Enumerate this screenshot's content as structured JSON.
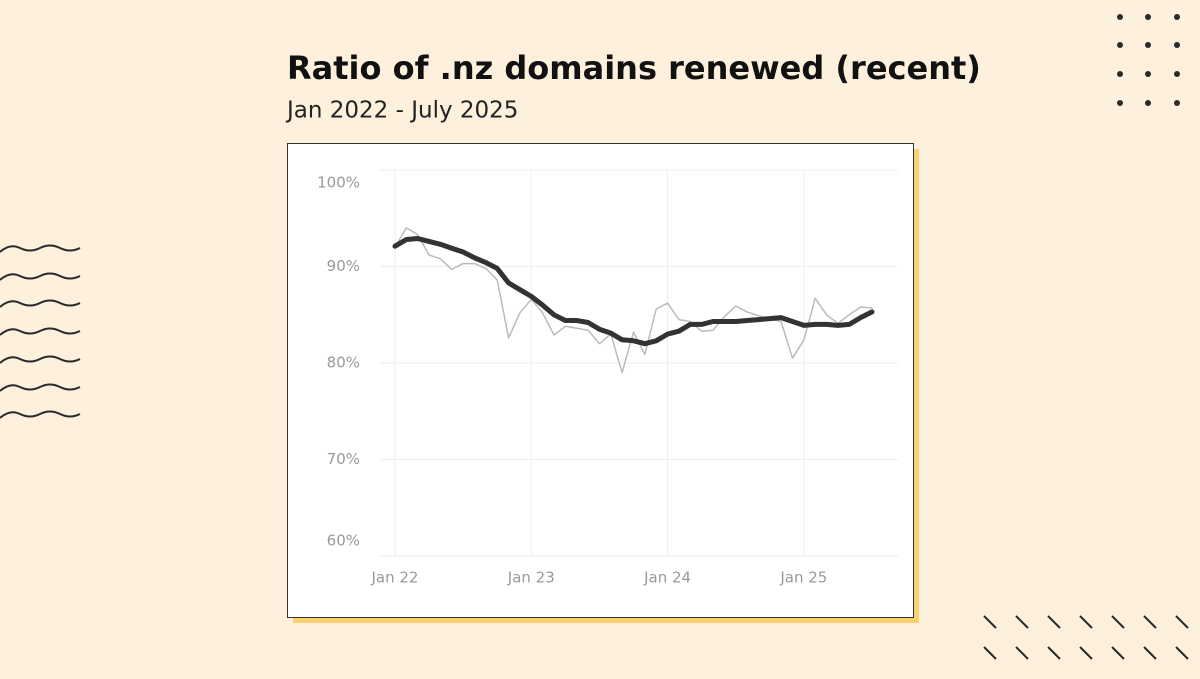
{
  "chart_data": {
    "type": "line",
    "title": "Ratio of .nz domains renewed (recent)",
    "subtitle": "Jan 2022 - July 2025",
    "categories": [
      "Jan 22",
      null,
      null,
      null,
      null,
      null,
      null,
      null,
      null,
      null,
      null,
      null,
      "Jan 23",
      null,
      null,
      null,
      null,
      null,
      null,
      null,
      null,
      null,
      null,
      null,
      "Jan 24",
      null,
      null,
      null,
      null,
      null,
      null,
      null,
      null,
      null,
      null,
      null,
      "Jan 25",
      null,
      null,
      null,
      null,
      null,
      null
    ],
    "series": [
      {
        "color": "#bbbbbb",
        "values": [
          92.0,
          94.0,
          93.3,
          91.2,
          90.8,
          89.7,
          90.3,
          90.3,
          89.8,
          88.6,
          82.6,
          85.2,
          86.6,
          85.2,
          82.9,
          83.8,
          83.6,
          83.4,
          82.0,
          83.0,
          79.0,
          83.2,
          80.9,
          85.6,
          86.2,
          84.5,
          84.3,
          83.3,
          83.4,
          84.8,
          85.9,
          85.3,
          84.9,
          84.6,
          84.3,
          80.5,
          82.4,
          86.7,
          85.0,
          84.1,
          85.0,
          85.8,
          85.7
        ]
      },
      {
        "color": "#333333",
        "values": [
          92.1,
          92.8,
          92.9,
          92.6,
          92.3,
          91.9,
          91.5,
          90.9,
          90.4,
          89.8,
          88.3,
          87.6,
          86.9,
          86.0,
          85.0,
          84.4,
          84.4,
          84.2,
          83.5,
          83.1,
          82.4,
          82.3,
          82.0,
          82.3,
          83.0,
          83.3,
          84.0,
          84.0,
          84.3,
          84.3,
          84.3,
          84.4,
          84.5,
          84.6,
          84.7,
          84.3,
          83.9,
          84.0,
          84.0,
          83.9,
          84.0,
          84.7,
          85.3
        ]
      }
    ],
    "ylim": [
      60,
      100
    ],
    "yticks": [
      {
        "value": 100,
        "label": "100%"
      },
      {
        "value": 90,
        "label": "90%"
      },
      {
        "value": 80,
        "label": "80%"
      },
      {
        "value": 70,
        "label": "70%"
      },
      {
        "value": 60,
        "label": "60%"
      }
    ],
    "grid": true
  }
}
